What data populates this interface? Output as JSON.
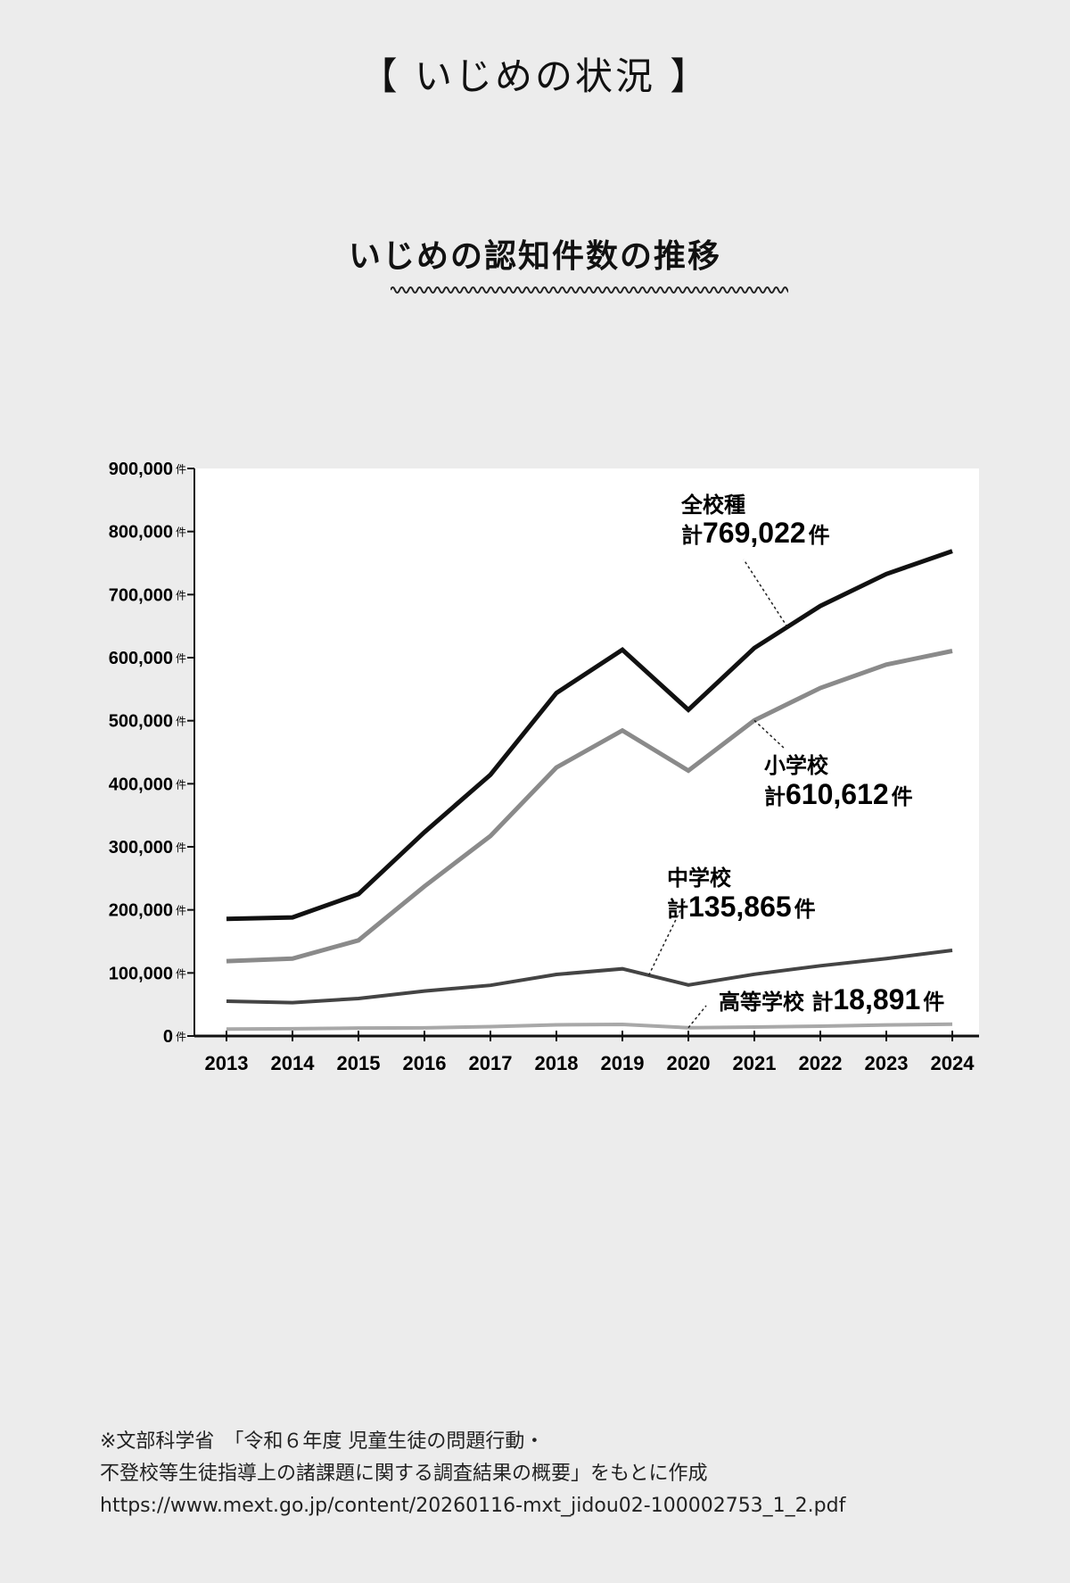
{
  "header": "【 いじめの状況 】",
  "chart_data": {
    "type": "line",
    "title": "いじめの認知件数の推移",
    "x": [
      "2013",
      "2014",
      "2015",
      "2016",
      "2017",
      "2018",
      "2019",
      "2020",
      "2021",
      "2022",
      "2023",
      "2024"
    ],
    "ylim": [
      0,
      900000
    ],
    "yticks": [
      "900,000",
      "800,000",
      "700,000",
      "600,000",
      "500,000",
      "400,000",
      "300,000",
      "200,000",
      "100,000",
      "0"
    ],
    "y_unit": "件",
    "grid": false,
    "series": [
      {
        "name": "全校種",
        "color": "#111111",
        "values": [
          185803,
          188057,
          225132,
          323143,
          414378,
          543933,
          612496,
          517163,
          615351,
          681948,
          732568,
          769022
        ]
      },
      {
        "name": "小学校",
        "color": "#8a8a8a",
        "values": [
          118748,
          122734,
          151692,
          237256,
          317121,
          425844,
          484545,
          420897,
          500562,
          551944,
          588930,
          610612
        ]
      },
      {
        "name": "中学校",
        "color": "#444444",
        "values": [
          55248,
          52971,
          59502,
          71309,
          80424,
          97704,
          106524,
          80877,
          97937,
          111404,
          122703,
          135865
        ]
      },
      {
        "name": "高等学校",
        "color": "#a8a8a8",
        "values": [
          11039,
          11404,
          12664,
          12874,
          14789,
          17709,
          18352,
          13126,
          14157,
          15568,
          17611,
          18891
        ]
      }
    ],
    "annotations": [
      {
        "series": "全校種",
        "line1": "全校種",
        "line2_prefix": "計",
        "value": "769,022",
        "unit": "件"
      },
      {
        "series": "小学校",
        "line1": "小学校",
        "line2_prefix": "計",
        "value": "610,612",
        "unit": "件"
      },
      {
        "series": "中学校",
        "line1": "中学校",
        "line2_prefix": "計",
        "value": "135,865",
        "unit": "件"
      },
      {
        "series": "高等学校",
        "line1": "高等学校",
        "line2_prefix": "計",
        "value": "18,891",
        "unit": "件"
      }
    ]
  },
  "source": {
    "line1": "※文部科学省　「令和６年度 児童生徒の問題行動・",
    "line2": "不登校等生徒指導上の諸課題に関する調査結果の概要」をもとに作成",
    "url": "https://www.mext.go.jp/content/20260116-mxt_jidou02-100002753_1_2.pdf"
  }
}
